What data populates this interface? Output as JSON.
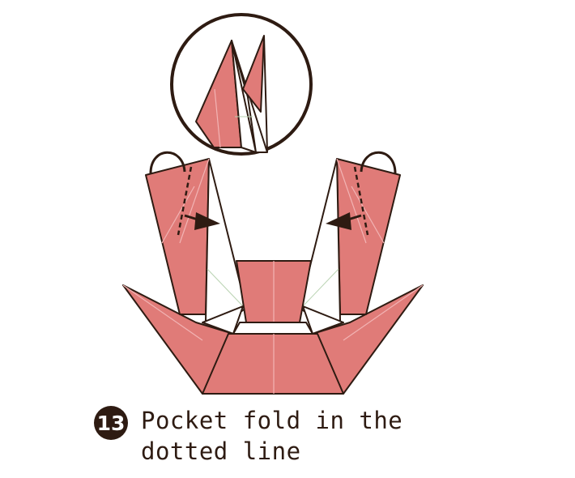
{
  "step": {
    "number": "13",
    "instruction_line1": "Pocket fold in the",
    "instruction_line2": "dotted line"
  },
  "colors": {
    "paper": "#e07b78",
    "paper_light": "#f5e6e4",
    "outline": "#2e1b12",
    "crease": "#f2b4b4",
    "guide": "#b9d3b2"
  }
}
